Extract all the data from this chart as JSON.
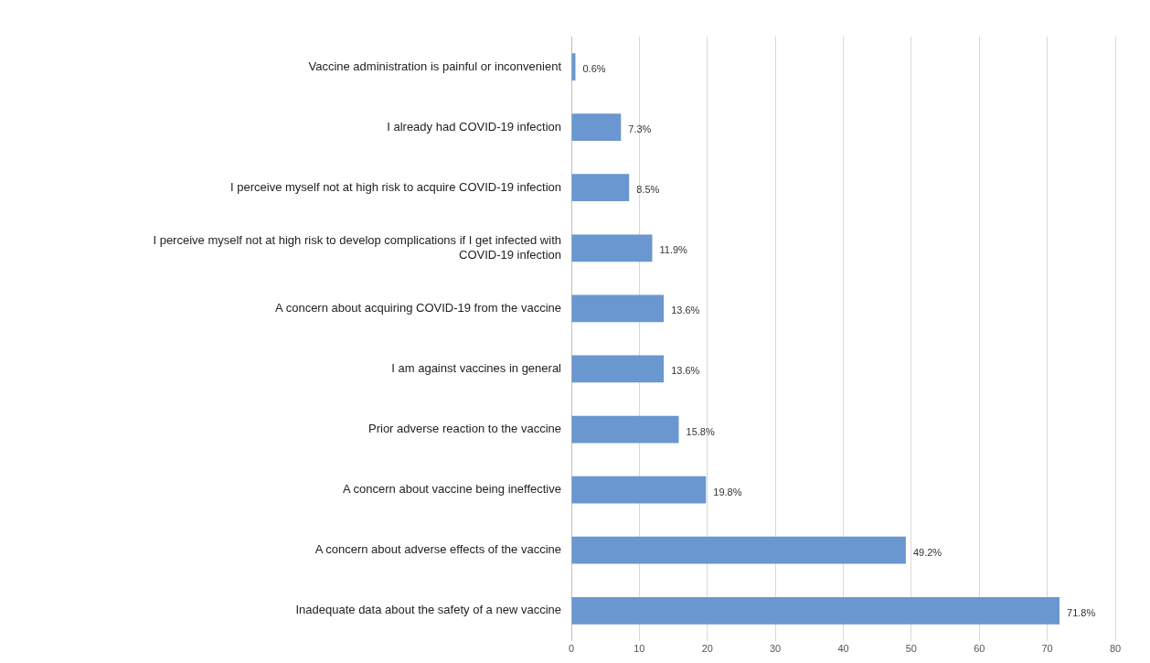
{
  "chart_data": {
    "type": "bar",
    "orientation": "horizontal",
    "categories": [
      "Vaccine administration is painful or inconvenient",
      "I already had COVID-19 infection",
      "I perceive myself not at high risk to acquire COVID-19 infection",
      "I perceive myself not at high risk to develop complications if I get infected with COVID-19 infection",
      "A concern about acquiring COVID-19 from the vaccine",
      "I am against vaccines in general",
      "Prior adverse reaction to the vaccine",
      "A concern about vaccine being ineffective",
      "A concern about adverse effects of the vaccine",
      "Inadequate data about the safety of a new vaccine"
    ],
    "values": [
      0.6,
      7.3,
      8.5,
      11.9,
      13.6,
      13.6,
      15.8,
      19.8,
      49.2,
      71.8
    ],
    "value_labels": [
      "0.6%",
      "7.3%",
      "8.5%",
      "11.9%",
      "13.6%",
      "13.6%",
      "15.8%",
      "19.8%",
      "49.2%",
      "71.8%"
    ],
    "color": "#6a97cf",
    "xlim": [
      0,
      80
    ],
    "xticks": [
      0,
      10,
      20,
      30,
      40,
      50,
      60,
      70,
      80
    ],
    "grid": "x",
    "legend": false
  }
}
